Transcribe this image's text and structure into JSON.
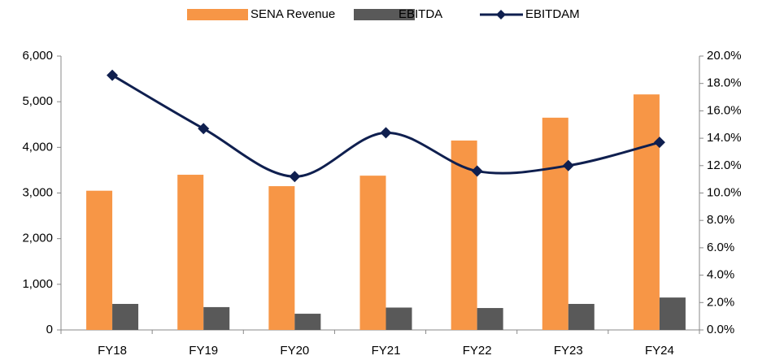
{
  "chart_data": {
    "type": "bar-line",
    "categories": [
      "FY18",
      "FY19",
      "FY20",
      "FY21",
      "FY22",
      "FY23",
      "FY24"
    ],
    "series": [
      {
        "name": "SENA Revenue",
        "color": "#f79646",
        "type": "bar",
        "values": [
          3050,
          3400,
          3150,
          3380,
          4150,
          4650,
          5160
        ]
      },
      {
        "name": "EBITDA",
        "color": "#595959",
        "type": "bar",
        "values": [
          570,
          500,
          355,
          490,
          480,
          570,
          710
        ]
      },
      {
        "name": "EBITDAM",
        "color": "#0f1f4f",
        "type": "line",
        "axis": "y2",
        "values": [
          18.6,
          14.7,
          11.2,
          14.4,
          11.6,
          12.0,
          13.7
        ]
      }
    ],
    "ylim": [
      0,
      6000
    ],
    "yticks": [
      0,
      {
        "value": 1000,
        "label": "1,000"
      },
      {
        "value": 2000,
        "label": "2,000"
      },
      {
        "value": 3000,
        "label": "3,000"
      },
      {
        "value": 4000,
        "label": "4,000"
      },
      {
        "value": 5000,
        "label": "5,000"
      },
      {
        "value": 6000,
        "label": "6,000"
      }
    ],
    "y2lim": [
      0,
      20
    ],
    "y2ticks": [
      {
        "value": 0,
        "label": "0.0%"
      },
      {
        "value": 2,
        "label": "2.0%"
      },
      {
        "value": 4,
        "label": "4.0%"
      },
      {
        "value": 6,
        "label": "6.0%"
      },
      {
        "value": 8,
        "label": "8.0%"
      },
      {
        "value": 10,
        "label": "10.0%"
      },
      {
        "value": 12,
        "label": "12.0%"
      },
      {
        "value": 14,
        "label": "14.0%"
      },
      {
        "value": 16,
        "label": "16.0%"
      },
      {
        "value": 18,
        "label": "18.0%"
      },
      {
        "value": 20,
        "label": "20.0%"
      }
    ],
    "legend": "top",
    "grid": false
  }
}
